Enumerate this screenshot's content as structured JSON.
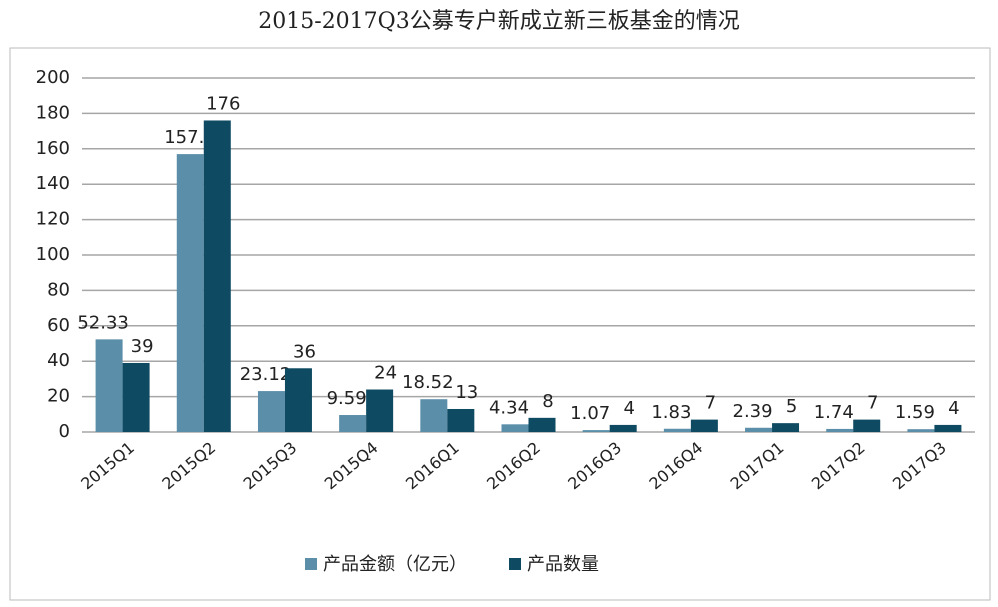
{
  "chart_data": {
    "type": "bar",
    "title": "2015-2017Q3公募专户新成立新三板基金的情况",
    "categories": [
      "2015Q1",
      "2015Q2",
      "2015Q3",
      "2015Q4",
      "2016Q1",
      "2016Q2",
      "2016Q3",
      "2016Q4",
      "2017Q1",
      "2017Q2",
      "2017Q3"
    ],
    "series": [
      {
        "name": "产品金额（亿元）",
        "color": "#5b8ea8",
        "values": [
          52.33,
          157,
          23.12,
          9.59,
          18.52,
          4.34,
          1.07,
          1.83,
          2.39,
          1.74,
          1.59
        ],
        "value_labels": [
          "52.33",
          "157.",
          "23.12",
          "9.59",
          "18.52",
          "4.34",
          "1.07",
          "1.83",
          "2.39",
          "1.74",
          "1.59"
        ]
      },
      {
        "name": "产品数量",
        "color": "#0e4a62",
        "values": [
          39,
          176,
          36,
          24,
          13,
          8,
          4,
          7,
          5,
          7,
          4
        ]
      }
    ],
    "ylim": [
      0,
      200
    ],
    "yticks": [
      0,
      20,
      40,
      60,
      80,
      100,
      120,
      140,
      160,
      180,
      200
    ],
    "grid": true,
    "legend": "bottom"
  }
}
